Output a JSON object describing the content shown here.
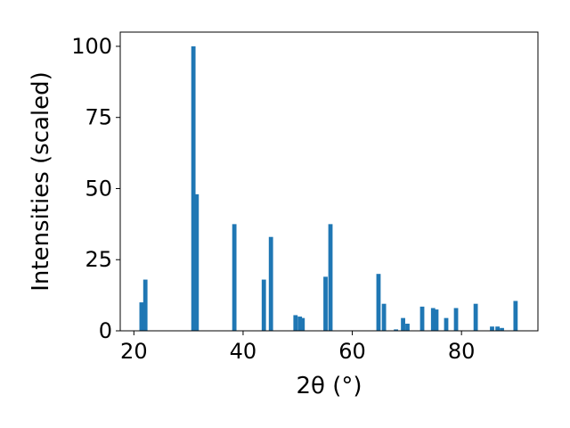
{
  "chart_data": {
    "type": "bar",
    "xlabel": "2θ (°)",
    "ylabel": "Intensities (scaled)",
    "xlim": [
      17.5,
      94
    ],
    "ylim": [
      0,
      105
    ],
    "x_ticks": [
      20,
      40,
      60,
      80
    ],
    "y_ticks": [
      0,
      25,
      50,
      75,
      100
    ],
    "grid": false,
    "bar_color": "#1f77b4",
    "series": [
      {
        "x": [
          21.4,
          22.1,
          30.9,
          31.5,
          38.4,
          43.8,
          45.1,
          49.6,
          50.4,
          50.9,
          55.1,
          56.0,
          64.8,
          65.8,
          68.0,
          69.3,
          70.1,
          72.8,
          74.8,
          75.4,
          77.2,
          79.0,
          82.6,
          85.6,
          86.6,
          87.4,
          89.9
        ],
        "values": [
          10,
          18,
          100,
          48,
          37.5,
          18,
          33,
          5.5,
          5,
          4.5,
          19,
          37.5,
          20,
          9.5,
          0.5,
          4.5,
          2.5,
          8.5,
          8,
          7.5,
          4.5,
          8,
          9.5,
          1.5,
          1.5,
          1,
          10.5
        ]
      }
    ]
  }
}
